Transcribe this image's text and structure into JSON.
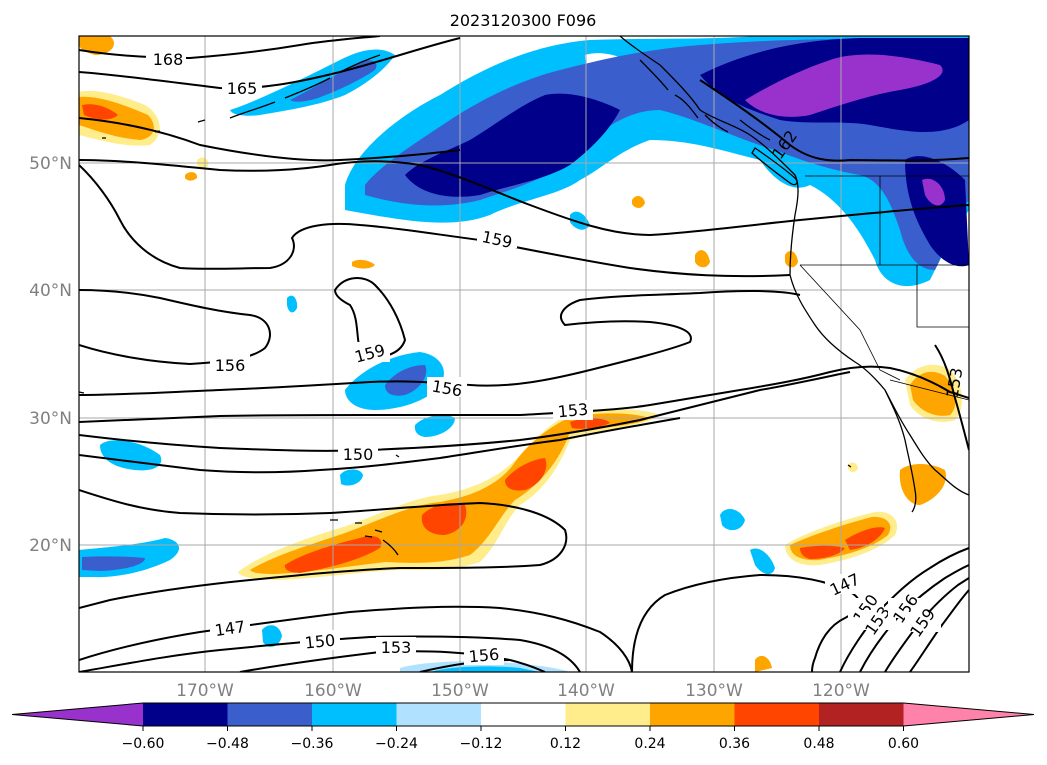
{
  "title": "2023120300 F096",
  "map": {
    "lat_ticks": [
      "50°N",
      "40°N",
      "30°N",
      "20°N"
    ],
    "lon_ticks": [
      "170°W",
      "160°W",
      "150°W",
      "140°W",
      "130°W",
      "120°W"
    ],
    "grid": true
  },
  "contours": {
    "color": "#000000",
    "labels": [
      "168",
      "165",
      "159",
      "159",
      "156",
      "156",
      "153",
      "150",
      "147",
      "150",
      "153",
      "156",
      "147",
      "150",
      "153",
      "156",
      "159",
      "153",
      "162"
    ]
  },
  "colorbar": {
    "ticks": [
      "−0.60",
      "−0.48",
      "−0.36",
      "−0.24",
      "−0.12",
      "0.12",
      "0.24",
      "0.36",
      "0.48",
      "0.60"
    ],
    "colors": [
      "#9932cc",
      "#00008b",
      "#3a5fcd",
      "#00bfff",
      "#b0e2ff",
      "#ffffff",
      "#ffec8b",
      "#ffa500",
      "#ff4500",
      "#b22222",
      "#ff82ab"
    ],
    "extend": "both"
  }
}
